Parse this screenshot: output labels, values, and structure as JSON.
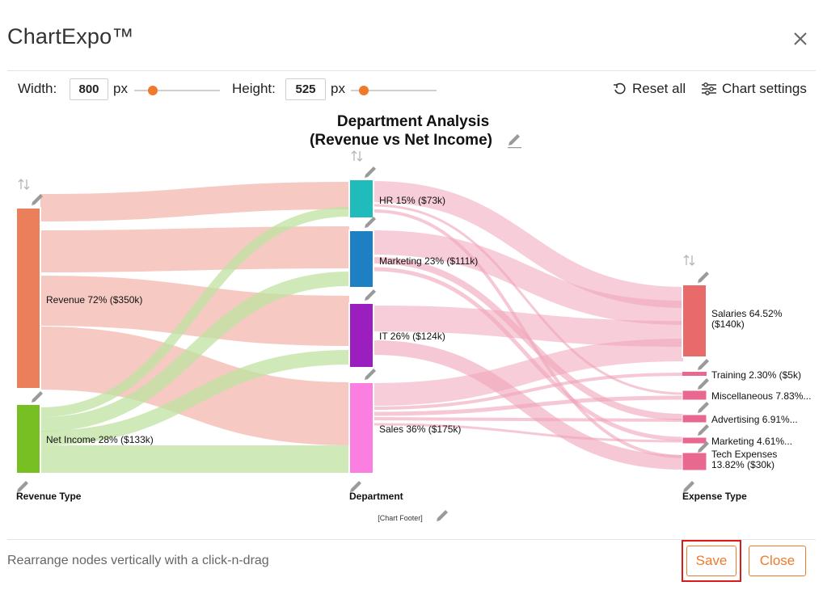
{
  "app": {
    "title": "ChartExpo™"
  },
  "toolbar": {
    "width_label": "Width:",
    "width_value": "800",
    "height_label": "Height:",
    "height_value": "525",
    "unit": "px",
    "reset_label": "Reset all",
    "settings_label": "Chart settings",
    "accent_color": "#ef7a2c"
  },
  "chart": {
    "title_line1": "Department Analysis",
    "title_line2": "(Revenue vs Net Income)",
    "footer": "[Chart Footer]",
    "axis_labels": [
      "Revenue Type",
      "Department",
      "Expense Type"
    ]
  },
  "chart_data": {
    "type": "sankey",
    "columns": [
      "Revenue Type",
      "Department",
      "Expense Type"
    ],
    "nodes": [
      {
        "id": "rev",
        "label": "Revenue 72% ($350k)",
        "column": 0,
        "color": "#ec7f5b"
      },
      {
        "id": "net",
        "label": "Net Income 28% ($133k)",
        "column": 0,
        "color": "#77bf22"
      },
      {
        "id": "hr",
        "label": "HR 15% ($73k)",
        "column": 1,
        "color": "#1fbcbb"
      },
      {
        "id": "mkt",
        "label": "Marketing 23% ($111k)",
        "column": 1,
        "color": "#1f7fc3"
      },
      {
        "id": "it",
        "label": "IT 26% ($124k)",
        "column": 1,
        "color": "#9b1fbf"
      },
      {
        "id": "sales",
        "label": "Sales 36% ($175k)",
        "column": 1,
        "color": "#fb7fe0"
      },
      {
        "id": "sal",
        "label": "Salaries 64.52% ($140k)",
        "column": 2,
        "color": "#e96a6a"
      },
      {
        "id": "trn",
        "label": "Training 2.30% ($5k)",
        "column": 2,
        "color": "#e9688f"
      },
      {
        "id": "misc",
        "label": "Miscellaneous 7.83%...",
        "column": 2,
        "color": "#e9688f"
      },
      {
        "id": "adv",
        "label": "Advertising 6.91%...",
        "column": 2,
        "color": "#e9688f"
      },
      {
        "id": "mkt2",
        "label": "Marketing 4.61%...",
        "column": 2,
        "color": "#e9688f"
      },
      {
        "id": "tech",
        "label": "Tech Expenses 13.82% ($30k)",
        "column": 2,
        "color": "#e9688f"
      }
    ],
    "links_color_from_revenue": "#f2b3a9",
    "links_color_from_netincome": "#bfe3a0",
    "links_color_to_expense": "#f0a4b9"
  },
  "footer": {
    "hint": "Rearrange nodes vertically with a click-n-drag",
    "save_label": "Save",
    "close_label": "Close"
  }
}
